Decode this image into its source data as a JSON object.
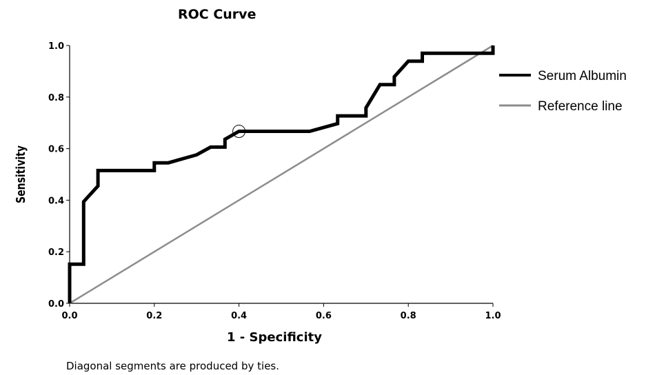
{
  "chart_data": {
    "type": "line",
    "title": "ROC Curve",
    "xlabel": "1 - Specificity",
    "ylabel": "Sensitivity",
    "xlim": [
      0,
      1
    ],
    "ylim": [
      0,
      1
    ],
    "x_ticks": [
      "0.0",
      "0.2",
      "0.4",
      "0.6",
      "0.8",
      "1.0"
    ],
    "y_ticks": [
      "0.0",
      "0.2",
      "0.4",
      "0.6",
      "0.8",
      "1.0"
    ],
    "grid": false,
    "legend_position": "right",
    "series": [
      {
        "name": "Serum Albumin",
        "color": "#000000",
        "x": [
          0.0,
          0.0,
          0.033,
          0.033,
          0.067,
          0.067,
          0.2,
          0.2,
          0.233,
          0.3,
          0.333,
          0.367,
          0.367,
          0.4,
          0.433,
          0.567,
          0.633,
          0.633,
          0.7,
          0.7,
          0.733,
          0.767,
          0.767,
          0.8,
          0.833,
          0.833,
          0.867,
          1.0,
          1.0
        ],
        "y": [
          0.0,
          0.152,
          0.152,
          0.394,
          0.455,
          0.515,
          0.515,
          0.545,
          0.545,
          0.576,
          0.606,
          0.606,
          0.636,
          0.667,
          0.667,
          0.667,
          0.697,
          0.727,
          0.727,
          0.758,
          0.848,
          0.848,
          0.879,
          0.939,
          0.939,
          0.97,
          0.97,
          0.97,
          1.0
        ]
      },
      {
        "name": "Reference line",
        "color": "#8c8c8c",
        "x": [
          0,
          1
        ],
        "y": [
          0,
          1
        ]
      }
    ],
    "marker": {
      "x": 0.4,
      "y": 0.667,
      "shape": "open-circle"
    }
  },
  "footnote": "Diagonal segments are produced by ties."
}
